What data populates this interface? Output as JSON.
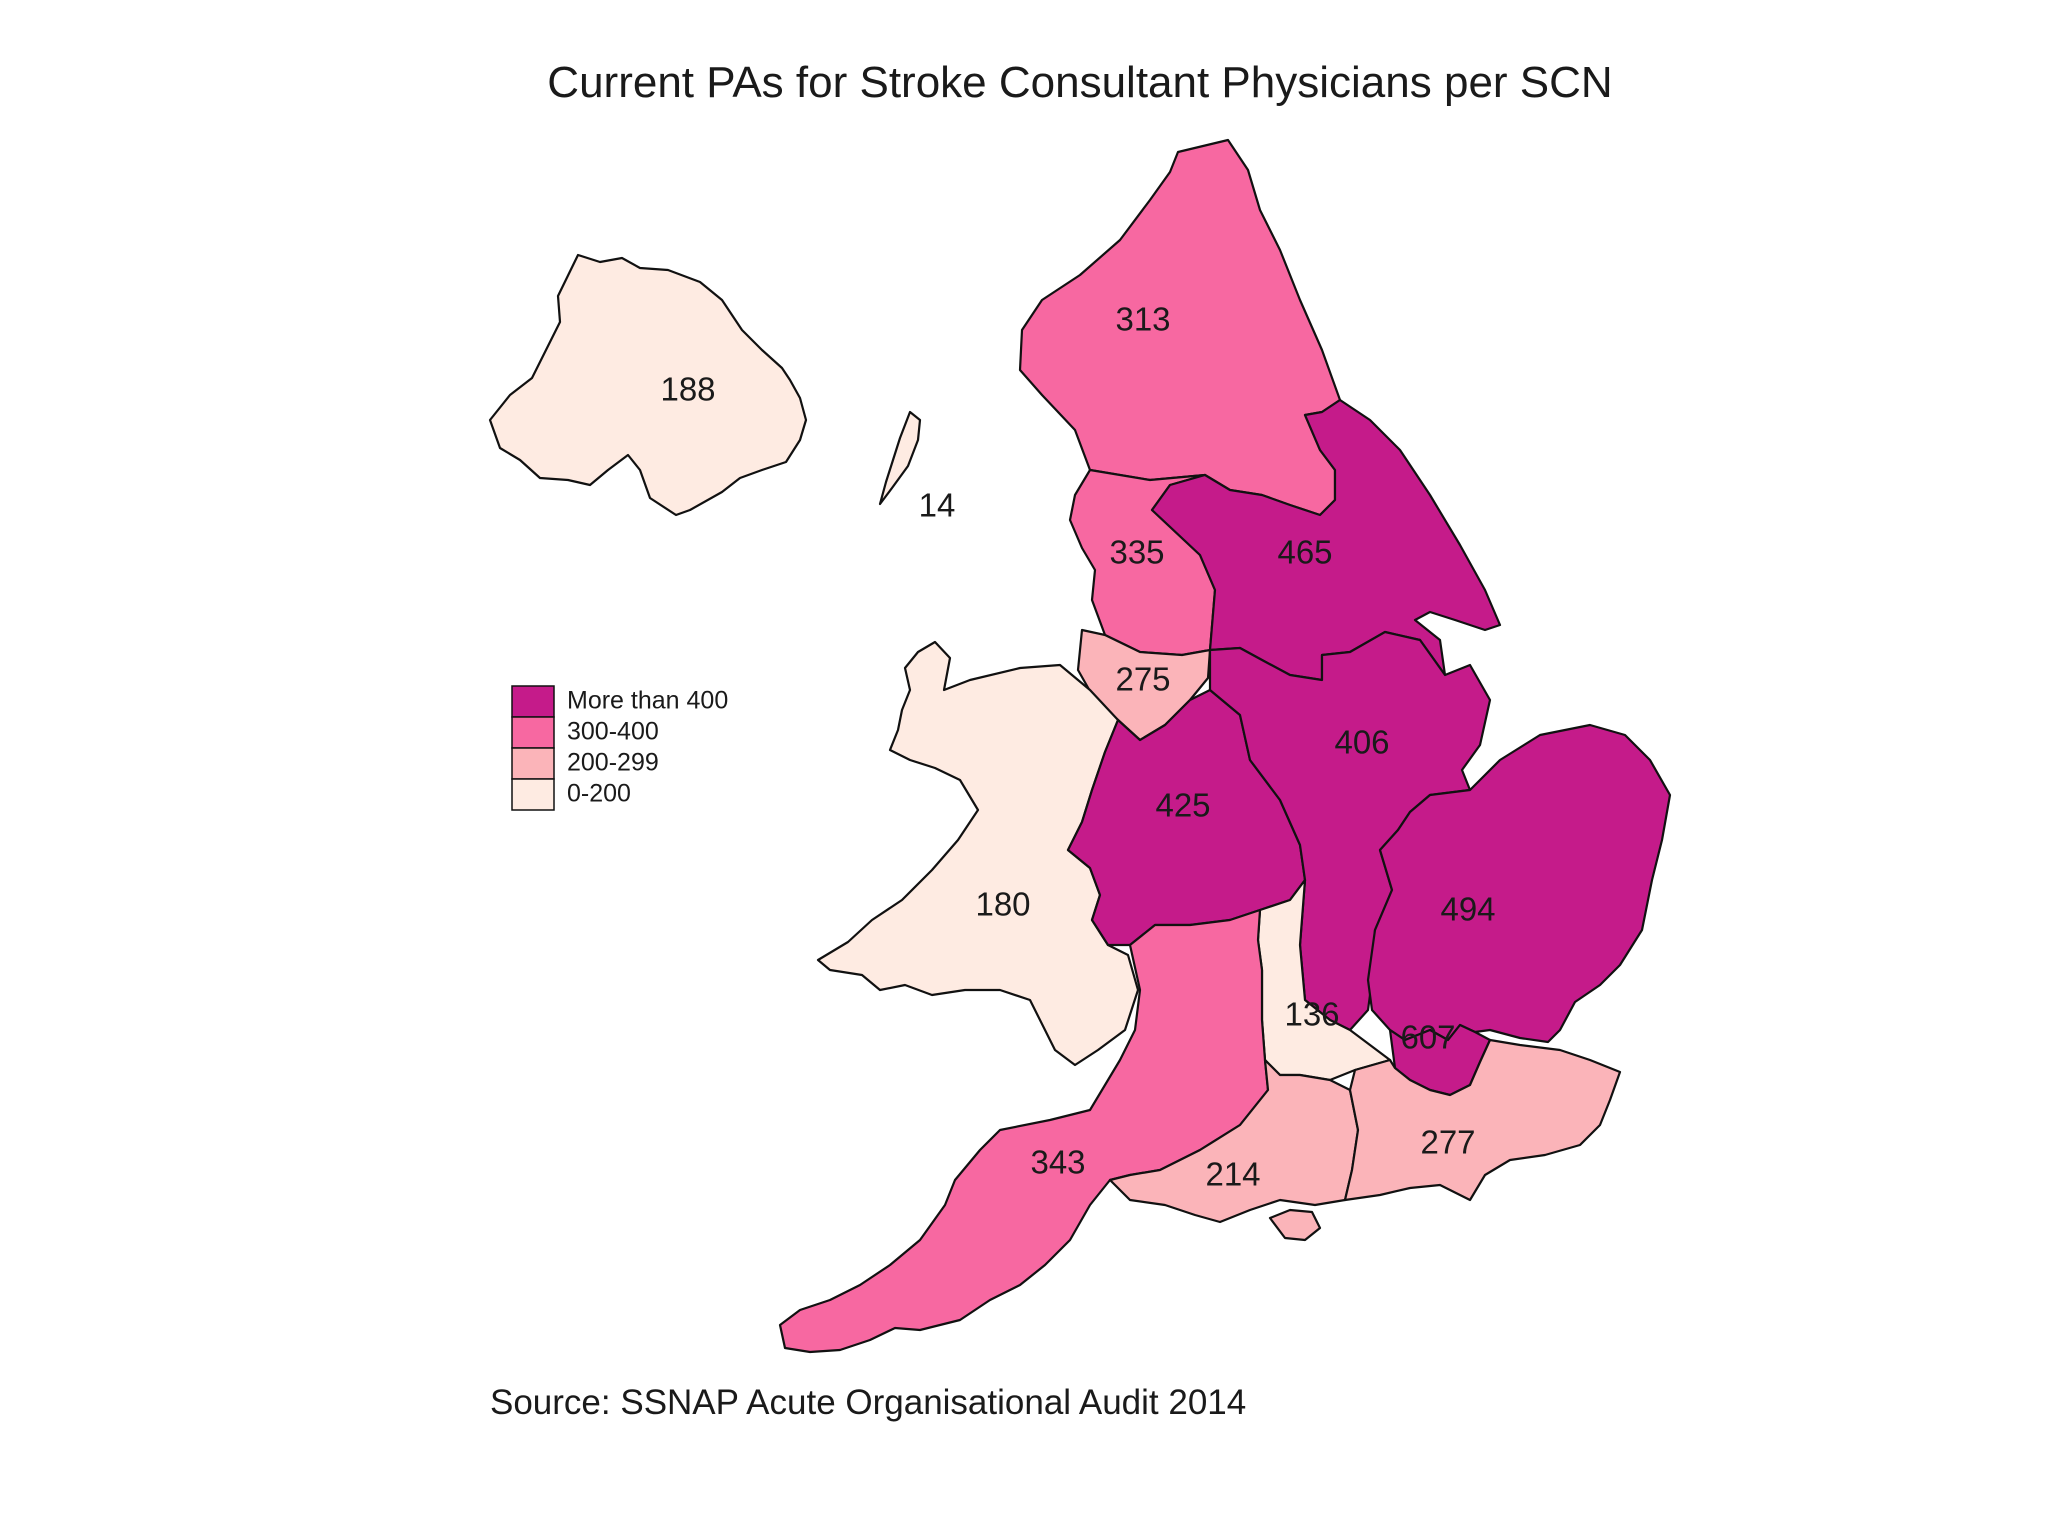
{
  "title": "Current PAs for Stroke Consultant Physicians per SCN",
  "source": "Source: SSNAP Acute Organisational Audit 2014",
  "legend": [
    {
      "label": "More than 400",
      "color": "#c51b8a"
    },
    {
      "label": "300-400",
      "color": "#f768a1"
    },
    {
      "label": "200-299",
      "color": "#fbb4b9"
    },
    {
      "label": "0-200",
      "color": "#feebe2"
    }
  ],
  "regions": [
    {
      "id": "northern-ireland",
      "value": "188",
      "color": "#feebe2"
    },
    {
      "id": "isle-of-man",
      "value": "14",
      "color": "#feebe2"
    },
    {
      "id": "north-east",
      "value": "313",
      "color": "#f768a1"
    },
    {
      "id": "north-west",
      "value": "335",
      "color": "#f768a1"
    },
    {
      "id": "yorkshire-humber",
      "value": "465",
      "color": "#c51b8a"
    },
    {
      "id": "cheshire-merseyside",
      "value": "275",
      "color": "#fbb4b9"
    },
    {
      "id": "wales",
      "value": "180",
      "color": "#feebe2"
    },
    {
      "id": "east-midlands",
      "value": "406",
      "color": "#c51b8a"
    },
    {
      "id": "west-midlands",
      "value": "425",
      "color": "#c51b8a"
    },
    {
      "id": "east-of-england",
      "value": "494",
      "color": "#c51b8a"
    },
    {
      "id": "thames-valley",
      "value": "136",
      "color": "#feebe2"
    },
    {
      "id": "london",
      "value": "607",
      "color": "#c51b8a"
    },
    {
      "id": "south-west",
      "value": "343",
      "color": "#f768a1"
    },
    {
      "id": "wessex",
      "value": "214",
      "color": "#fbb4b9"
    },
    {
      "id": "south-east",
      "value": "277",
      "color": "#fbb4b9"
    }
  ]
}
